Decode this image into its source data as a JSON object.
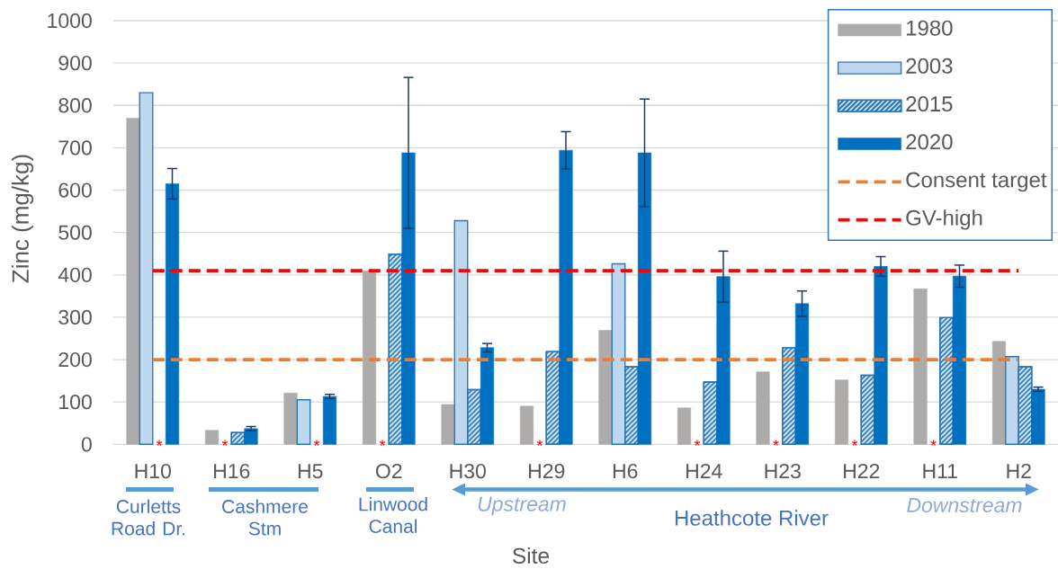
{
  "chart_data": {
    "type": "bar",
    "xlabel": "Site",
    "ylabel": "Zinc (mg/kg)",
    "categories": [
      "H10",
      "H16",
      "H5",
      "O2",
      "H30",
      "H29",
      "H6",
      "H24",
      "H23",
      "H22",
      "H11",
      "H2"
    ],
    "series": [
      {
        "name": "1980",
        "color": "#aeabab",
        "values": [
          770,
          33,
          121,
          409,
          94,
          90,
          269,
          86,
          171,
          152,
          367,
          243
        ]
      },
      {
        "name": "2003",
        "color": "#bdd7ee",
        "values": [
          830,
          null,
          105,
          null,
          528,
          null,
          426,
          null,
          null,
          null,
          null,
          207
        ]
      },
      {
        "name": "2015",
        "color": "#d3eef7",
        "values": [
          null,
          28,
          null,
          449,
          129,
          219,
          183,
          147,
          228,
          163,
          299,
          183
        ]
      },
      {
        "name": "2020",
        "color": "#0070c0",
        "values": [
          615,
          37,
          113,
          688,
          228,
          694,
          688,
          396,
          332,
          420,
          397,
          130
        ],
        "errors": [
          36,
          5,
          5,
          178,
          10,
          44,
          127,
          60,
          30,
          23,
          26,
          5
        ]
      }
    ],
    "ylim": [
      0,
      1000
    ],
    "yticks": [
      0,
      100,
      200,
      300,
      400,
      500,
      600,
      700,
      800,
      900,
      1000
    ],
    "grid": "y",
    "legend": "top right",
    "ref_lines": [
      {
        "axis": "y",
        "value": 200,
        "label": "Consent target",
        "color": "#ed7d31",
        "line_style": "dashed"
      },
      {
        "axis": "y",
        "value": 410,
        "label": "GV-high",
        "color": "#ff0000",
        "line_style": "dashed"
      }
    ],
    "annotations": [
      {
        "text": "*",
        "x": "H10",
        "y": 0
      },
      {
        "text": "*",
        "x": "H16",
        "y": 0
      },
      {
        "text": "*",
        "x": "H5",
        "y": 0
      },
      {
        "text": "*",
        "x": "O2",
        "y": 0
      },
      {
        "text": "*",
        "x": "H29",
        "y": 0
      },
      {
        "text": "*",
        "x": "H24",
        "y": 0
      },
      {
        "text": "*",
        "x": "H23",
        "y": 0
      },
      {
        "text": "*",
        "x": "H22",
        "y": 0
      },
      {
        "text": "*",
        "x": "H11",
        "y": 0
      },
      "Curletts Road Dr.",
      "Cashmere Stm",
      "Linwood Canal",
      "Heathcote River",
      "Upstream",
      "Downstream"
    ]
  }
}
